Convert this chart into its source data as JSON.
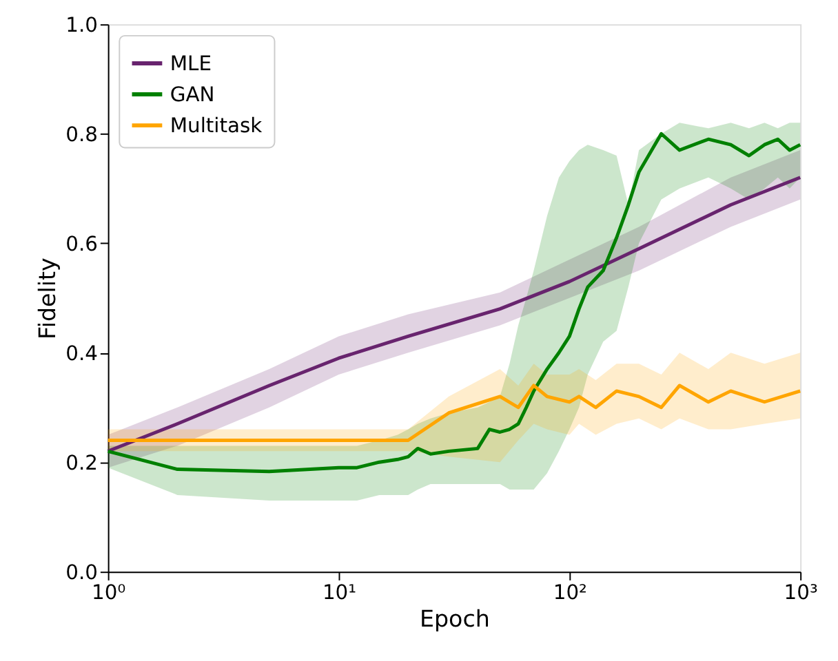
{
  "chart_data": {
    "type": "line",
    "xlabel": "Epoch",
    "ylabel": "Fidelity",
    "log": "x",
    "xlim": [
      1,
      1000
    ],
    "xticks": [
      {
        "value": 1,
        "label": "10⁰"
      },
      {
        "value": 10,
        "label": "10¹"
      },
      {
        "value": 100,
        "label": "10²"
      },
      {
        "value": 1000,
        "label": "10³"
      }
    ],
    "ylim": [
      0,
      1
    ],
    "yticks": [
      {
        "value": 0,
        "label": "0.0"
      },
      0.2,
      0.4,
      0.6,
      0.8,
      {
        "value": 1,
        "label": "1.0"
      }
    ],
    "grid": false,
    "legend": "top left",
    "line_style": "solid",
    "marker": "none",
    "series": [
      {
        "name": "MLE",
        "color": "#68246e",
        "x": [
          1,
          2,
          5,
          10,
          20,
          50,
          100,
          200,
          500,
          1000
        ],
        "values": [
          0.22,
          0.27,
          0.34,
          0.39,
          0.43,
          0.48,
          0.53,
          0.59,
          0.67,
          0.72
        ],
        "lower": [
          0.19,
          0.23,
          0.3,
          0.36,
          0.4,
          0.45,
          0.5,
          0.55,
          0.63,
          0.68
        ],
        "upper": [
          0.25,
          0.3,
          0.37,
          0.43,
          0.47,
          0.51,
          0.57,
          0.63,
          0.72,
          0.77
        ]
      },
      {
        "name": "GAN",
        "color": "#008000",
        "x": [
          1,
          2,
          5,
          10,
          12,
          15,
          18,
          20,
          22,
          25,
          30,
          40,
          45,
          50,
          55,
          60,
          65,
          70,
          80,
          90,
          100,
          110,
          120,
          140,
          160,
          180,
          200,
          250,
          300,
          400,
          500,
          600,
          700,
          800,
          900,
          1000
        ],
        "values": [
          0.22,
          0.187,
          0.183,
          0.19,
          0.19,
          0.2,
          0.205,
          0.21,
          0.225,
          0.215,
          0.22,
          0.225,
          0.26,
          0.255,
          0.26,
          0.27,
          0.3,
          0.33,
          0.37,
          0.4,
          0.43,
          0.48,
          0.52,
          0.55,
          0.61,
          0.67,
          0.73,
          0.8,
          0.77,
          0.79,
          0.78,
          0.76,
          0.78,
          0.79,
          0.77,
          0.78
        ],
        "lower": [
          0.19,
          0.14,
          0.13,
          0.13,
          0.13,
          0.14,
          0.14,
          0.14,
          0.15,
          0.16,
          0.16,
          0.16,
          0.16,
          0.16,
          0.15,
          0.15,
          0.15,
          0.15,
          0.18,
          0.22,
          0.26,
          0.3,
          0.36,
          0.42,
          0.44,
          0.52,
          0.6,
          0.68,
          0.7,
          0.72,
          0.7,
          0.68,
          0.7,
          0.72,
          0.7,
          0.72
        ],
        "upper": [
          0.23,
          0.23,
          0.23,
          0.23,
          0.23,
          0.24,
          0.25,
          0.26,
          0.27,
          0.28,
          0.29,
          0.3,
          0.31,
          0.32,
          0.38,
          0.45,
          0.5,
          0.55,
          0.65,
          0.72,
          0.75,
          0.77,
          0.78,
          0.77,
          0.76,
          0.67,
          0.77,
          0.8,
          0.82,
          0.81,
          0.82,
          0.81,
          0.82,
          0.81,
          0.82,
          0.82
        ]
      },
      {
        "name": "Multitask",
        "color": "#ffa500",
        "x": [
          1,
          5,
          10,
          20,
          30,
          50,
          60,
          70,
          80,
          100,
          110,
          130,
          160,
          200,
          250,
          300,
          400,
          500,
          700,
          1000
        ],
        "values": [
          0.24,
          0.24,
          0.24,
          0.24,
          0.29,
          0.32,
          0.3,
          0.34,
          0.32,
          0.31,
          0.32,
          0.3,
          0.33,
          0.32,
          0.3,
          0.34,
          0.31,
          0.33,
          0.31,
          0.33
        ],
        "lower": [
          0.22,
          0.22,
          0.22,
          0.22,
          0.21,
          0.2,
          0.24,
          0.27,
          0.26,
          0.25,
          0.27,
          0.25,
          0.27,
          0.28,
          0.26,
          0.28,
          0.26,
          0.26,
          0.27,
          0.28
        ],
        "upper": [
          0.26,
          0.26,
          0.26,
          0.26,
          0.32,
          0.37,
          0.34,
          0.38,
          0.36,
          0.36,
          0.37,
          0.35,
          0.38,
          0.38,
          0.36,
          0.4,
          0.37,
          0.4,
          0.38,
          0.4
        ]
      }
    ]
  }
}
